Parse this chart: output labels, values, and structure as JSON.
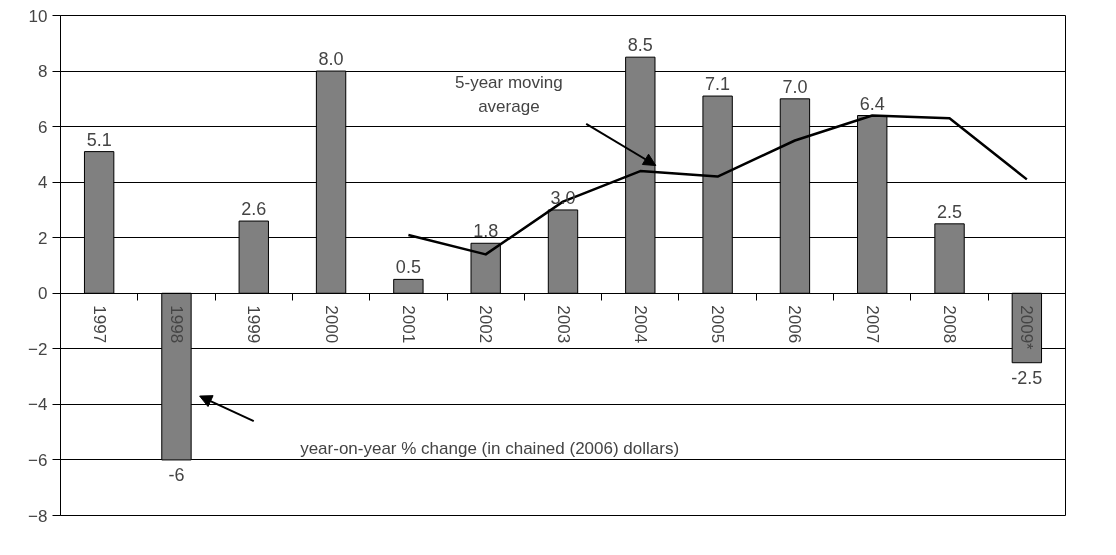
{
  "chart_data": {
    "type": "bar",
    "categories": [
      "1997",
      "1998",
      "1999",
      "2000",
      "2001",
      "2002",
      "2003",
      "2004",
      "2005",
      "2006",
      "2007",
      "2008",
      "2009*"
    ],
    "series": [
      {
        "color": "#808080",
        "values": [
          5.1,
          -6,
          2.6,
          8.0,
          0.5,
          1.8,
          3.0,
          8.5,
          7.1,
          7.0,
          6.4,
          2.5,
          -2.5
        ],
        "value_labels": [
          "5.1",
          "-6",
          "2.6",
          "8.0",
          "0.5",
          "1.8",
          "3.0",
          "8.5",
          "7.1",
          "7.0",
          "6.4",
          "2.5",
          "-2.5"
        ]
      },
      {
        "type": "line",
        "color": "#000000",
        "values": [
          null,
          null,
          null,
          null,
          2.1,
          1.4,
          3.3,
          4.4,
          4.2,
          5.5,
          6.4,
          6.3,
          4.1
        ]
      }
    ],
    "annotations": [
      "5-year moving average",
      "year-on-year % change (in chained (2006) dollars)"
    ],
    "ylim": [
      -8,
      10
    ],
    "yticks": [
      -8,
      -6,
      -4,
      -2,
      0,
      2,
      4,
      6,
      8,
      10
    ],
    "grid": "y",
    "marker": "none",
    "line_style": "solid"
  }
}
